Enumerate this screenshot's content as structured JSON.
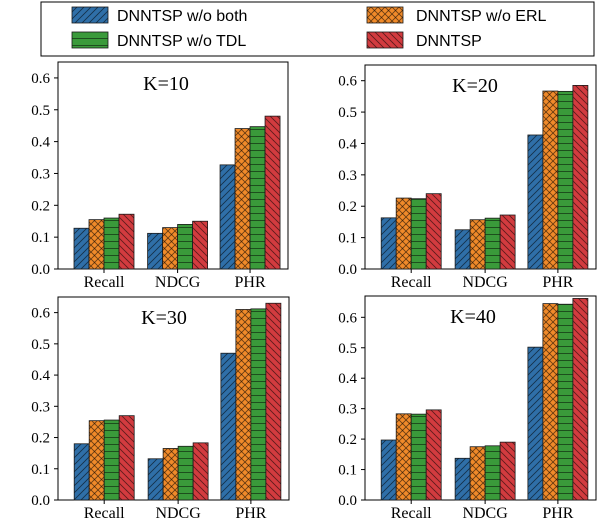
{
  "colors": {
    "DNNTSP w/o both": "#2f6fa8",
    "DNNTSP w/o ERL": "#f08a2a",
    "DNNTSP w/o TDL": "#3a9a3a",
    "DNNTSP": "#d23b3f"
  },
  "hatches": {
    "DNNTSP w/o both": "diag",
    "DNNTSP w/o ERL": "cross",
    "DNNTSP w/o TDL": "horiz",
    "DNNTSP": "backdiag"
  },
  "legend": {
    "items": [
      "DNNTSP w/o both",
      "DNNTSP w/o ERL",
      "DNNTSP w/o TDL",
      "DNNTSP"
    ]
  },
  "chart_data": [
    {
      "type": "bar",
      "title": "K=10",
      "categories": [
        "Recall",
        "NDCG",
        "PHR"
      ],
      "ylim": [
        0,
        0.65
      ],
      "yticks": [
        "0.0",
        "0.1",
        "0.2",
        "0.3",
        "0.4",
        "0.5",
        "0.6"
      ],
      "series": [
        {
          "name": "DNNTSP w/o both",
          "values": [
            0.128,
            0.112,
            0.327
          ]
        },
        {
          "name": "DNNTSP w/o ERL",
          "values": [
            0.155,
            0.13,
            0.441
          ]
        },
        {
          "name": "DNNTSP w/o TDL",
          "values": [
            0.16,
            0.14,
            0.447
          ]
        },
        {
          "name": "DNNTSP",
          "values": [
            0.172,
            0.15,
            0.48
          ]
        }
      ]
    },
    {
      "type": "bar",
      "title": "K=20",
      "categories": [
        "Recall",
        "NDCG",
        "PHR"
      ],
      "ylim": [
        0,
        0.65
      ],
      "yticks": [
        "0.0",
        "0.1",
        "0.2",
        "0.3",
        "0.4",
        "0.5",
        "0.6"
      ],
      "series": [
        {
          "name": "DNNTSP w/o both",
          "values": [
            0.163,
            0.125,
            0.427
          ]
        },
        {
          "name": "DNNTSP w/o ERL",
          "values": [
            0.226,
            0.157,
            0.567
          ]
        },
        {
          "name": "DNNTSP w/o TDL",
          "values": [
            0.224,
            0.162,
            0.566
          ]
        },
        {
          "name": "DNNTSP",
          "values": [
            0.24,
            0.172,
            0.585
          ]
        }
      ]
    },
    {
      "type": "bar",
      "title": "K=30",
      "categories": [
        "Recall",
        "NDCG",
        "PHR"
      ],
      "ylim": [
        0,
        0.65
      ],
      "yticks": [
        "0.0",
        "0.1",
        "0.2",
        "0.3",
        "0.4",
        "0.5",
        "0.6"
      ],
      "series": [
        {
          "name": "DNNTSP w/o both",
          "values": [
            0.18,
            0.132,
            0.47
          ]
        },
        {
          "name": "DNNTSP w/o ERL",
          "values": [
            0.254,
            0.165,
            0.61
          ]
        },
        {
          "name": "DNNTSP w/o TDL",
          "values": [
            0.256,
            0.172,
            0.612
          ]
        },
        {
          "name": "DNNTSP",
          "values": [
            0.27,
            0.183,
            0.63
          ]
        }
      ]
    },
    {
      "type": "bar",
      "title": "K=40",
      "categories": [
        "Recall",
        "NDCG",
        "PHR"
      ],
      "ylim": [
        0,
        0.67
      ],
      "yticks": [
        "0.0",
        "0.1",
        "0.2",
        "0.3",
        "0.4",
        "0.5",
        "0.6"
      ],
      "series": [
        {
          "name": "DNNTSP w/o both",
          "values": [
            0.197,
            0.137,
            0.502
          ]
        },
        {
          "name": "DNNTSP w/o ERL",
          "values": [
            0.283,
            0.175,
            0.645
          ]
        },
        {
          "name": "DNNTSP w/o TDL",
          "values": [
            0.282,
            0.178,
            0.643
          ]
        },
        {
          "name": "DNNTSP",
          "values": [
            0.296,
            0.19,
            0.662
          ]
        }
      ]
    }
  ]
}
